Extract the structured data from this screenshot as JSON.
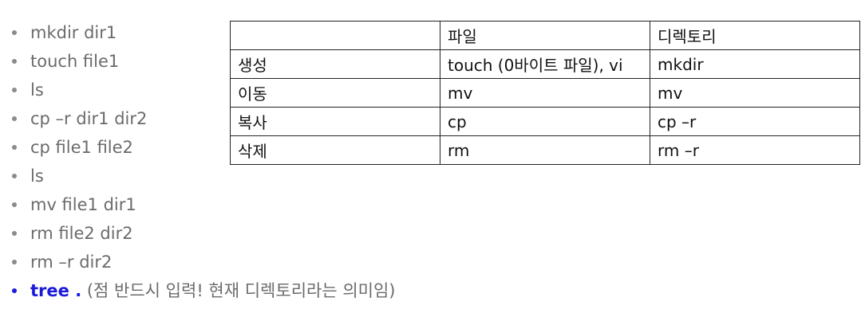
{
  "commands": [
    "mkdir dir1",
    "touch file1",
    "ls",
    "cp –r dir1 dir2",
    "cp file1 file2",
    "ls",
    "mv file1 dir1",
    "rm file2 dir2",
    "rm –r dir2"
  ],
  "highlight": {
    "command": "tree .",
    "note": "(점 반드시 입력! 현재 디렉토리라는 의미임)",
    "color": "#1a1adb"
  },
  "table": {
    "headers": [
      "",
      "파일",
      "디렉토리"
    ],
    "rows": [
      [
        "생성",
        "touch (0바이트 파일), vi",
        "mkdir"
      ],
      [
        "이동",
        "mv",
        "mv"
      ],
      [
        "복사",
        "cp",
        "cp –r"
      ],
      [
        "삭제",
        "rm",
        "rm –r"
      ]
    ]
  }
}
